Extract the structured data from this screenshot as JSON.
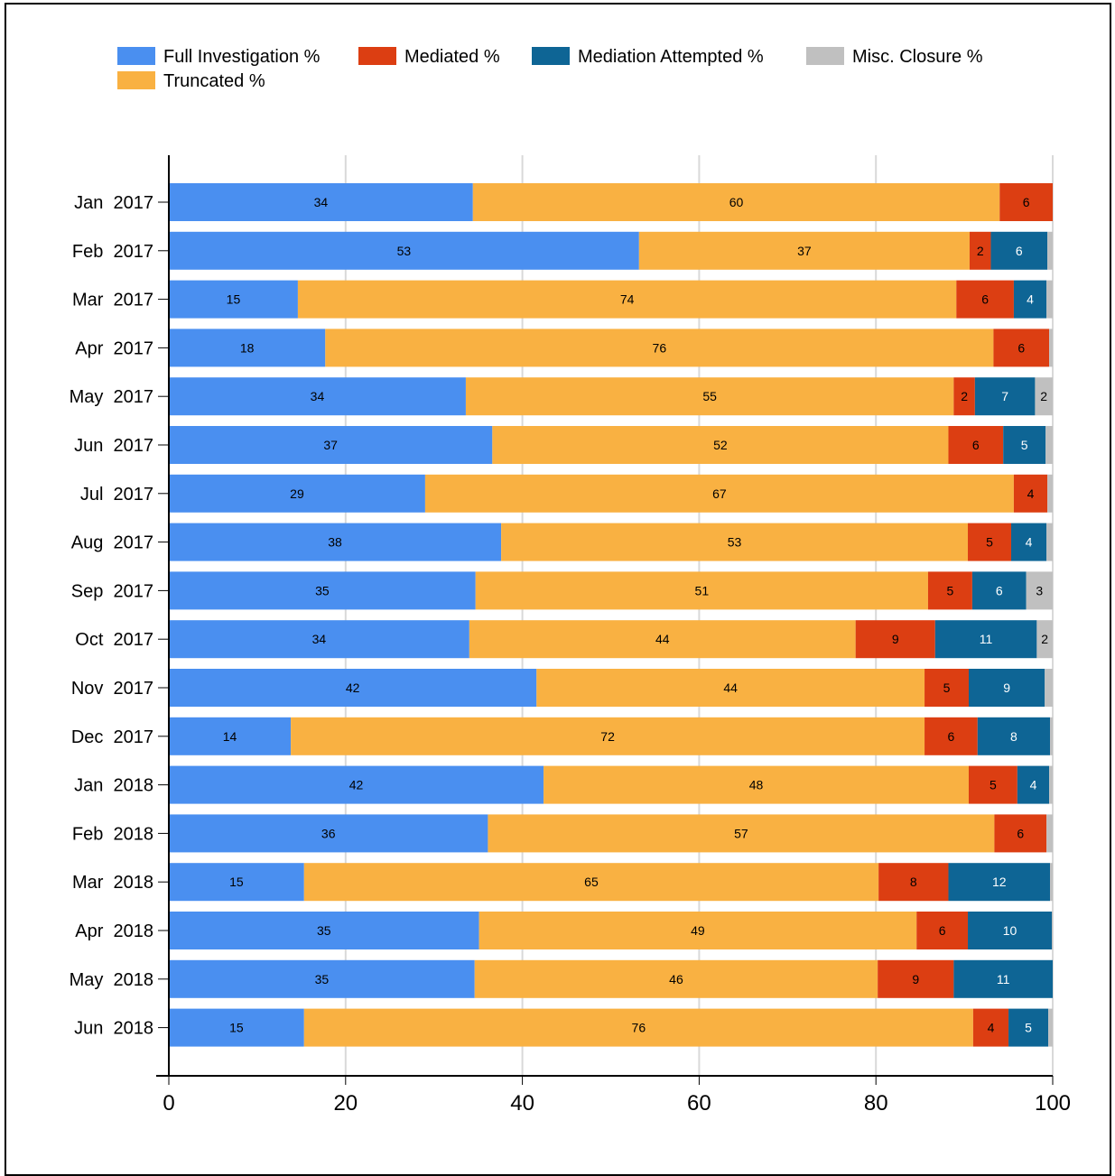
{
  "chart_data": {
    "type": "bar",
    "orientation": "horizontal",
    "stacked": true,
    "categories": [
      "Jan  2017",
      "Feb  2017",
      "Mar  2017",
      "Apr  2017",
      "May  2017",
      "Jun  2017",
      "Jul  2017",
      "Aug  2017",
      "Sep  2017",
      "Oct  2017",
      "Nov  2017",
      "Dec  2017",
      "Jan  2018",
      "Feb  2018",
      "Mar  2018",
      "Apr  2018",
      "May  2018",
      "Jun  2018"
    ],
    "series": [
      {
        "name": "Full Investigation %",
        "color": "#4a8ff0",
        "values": [
          34.4,
          53.2,
          14.6,
          17.7,
          33.6,
          36.6,
          29.0,
          37.6,
          34.7,
          34.0,
          41.6,
          13.8,
          42.4,
          36.1,
          15.3,
          35.1,
          34.6,
          15.3
        ],
        "labels": [
          "34",
          "53",
          "15",
          "18",
          "34",
          "37",
          "29",
          "38",
          "35",
          "34",
          "42",
          "14",
          "42",
          "36",
          "15",
          "35",
          "35",
          "15"
        ]
      },
      {
        "name": "Truncated %",
        "color": "#f9b142",
        "values": [
          59.6,
          37.4,
          74.5,
          75.6,
          55.2,
          51.6,
          66.6,
          52.8,
          51.2,
          43.7,
          43.9,
          71.7,
          48.1,
          57.3,
          65.0,
          49.5,
          45.6,
          75.7
        ],
        "labels": [
          "60",
          "37",
          "74",
          "76",
          "55",
          "52",
          "67",
          "53",
          "51",
          "44",
          "44",
          "72",
          "48",
          "57",
          "65",
          "49",
          "46",
          "76"
        ]
      },
      {
        "name": "Mediated %",
        "color": "#dc3e12",
        "values": [
          6.0,
          2.4,
          6.5,
          6.3,
          2.4,
          6.2,
          3.8,
          4.9,
          5.0,
          9.0,
          5.0,
          6.0,
          5.5,
          5.9,
          7.9,
          5.8,
          8.6,
          4.0
        ],
        "labels": [
          "6",
          "2",
          "6",
          "6",
          "2",
          "6",
          "4",
          "5",
          "5",
          "9",
          "5",
          "6",
          "5",
          "6",
          "8",
          "6",
          "9",
          "4"
        ]
      },
      {
        "name": "Mediation Attempted %",
        "color": "#0e6595",
        "values": [
          0,
          6.4,
          3.7,
          0,
          6.8,
          4.8,
          0,
          4.0,
          6.1,
          11.5,
          8.6,
          8.2,
          3.6,
          0,
          11.5,
          9.5,
          11.2,
          4.5
        ],
        "labels": [
          "",
          "6",
          "4",
          "",
          "7",
          "5",
          "",
          "4",
          "6",
          "11",
          "9",
          "8",
          "4",
          "",
          "12",
          "10",
          "11",
          "5"
        ]
      },
      {
        "name": "Misc. Closure %",
        "color": "#c0c0c0",
        "values": [
          0,
          0.6,
          0.7,
          0.4,
          2.0,
          0.8,
          0.6,
          0.7,
          3.0,
          1.8,
          0.9,
          0.3,
          0.4,
          0.7,
          0.3,
          0.1,
          0,
          0.5
        ],
        "labels": [
          "",
          "",
          "",
          "",
          "2",
          "",
          "",
          "",
          "3",
          "2",
          "",
          "",
          "",
          "",
          "",
          "",
          "",
          ""
        ]
      }
    ],
    "legend_order": [
      "Full Investigation %",
      "Mediated %",
      "Mediation Attempted %",
      "Misc. Closure %",
      "Truncated %"
    ],
    "xlim": [
      0,
      100
    ],
    "xticks": [
      "0",
      "20",
      "40",
      "60",
      "80",
      "100"
    ],
    "legend_position": "top",
    "grid": true,
    "title": "",
    "xlabel": "",
    "ylabel": ""
  }
}
